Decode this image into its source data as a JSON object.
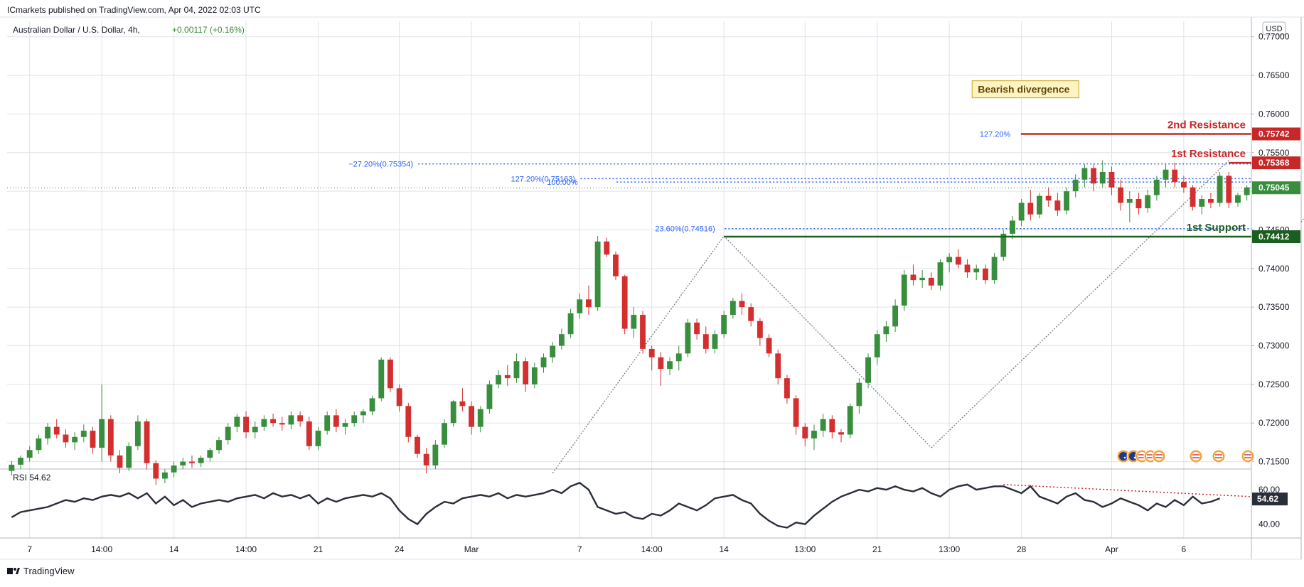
{
  "header": {
    "published": "ICmarkets published on TradingView.com, Apr 04, 2022 02:03 UTC",
    "symbol": "Australian Dollar / U.S. Dollar, 4h,",
    "change": "+0.00117 (+0.16%)",
    "currency": "USD"
  },
  "footer": {
    "brand": "TradingView",
    "brand_icon": "tradingview-logo-icon"
  },
  "colors": {
    "up": "#388e3c",
    "down": "#d32f2f",
    "resistance": "#c62828",
    "support": "#1b5e20",
    "fib": "#2962ff",
    "rsi": "#2a2e39",
    "grid": "#e0e3eb"
  },
  "chart_data": {
    "type": "candlestick",
    "y_axis": {
      "ticks": [
        "0.77000",
        "0.76500",
        "0.76000",
        "0.75500",
        "0.75000",
        "0.74500",
        "0.74000",
        "0.73500",
        "0.73000",
        "0.72500",
        "0.72000",
        "0.71500"
      ],
      "range": [
        0.7145,
        0.772
      ]
    },
    "x_axis": {
      "ticks": [
        {
          "label": "7",
          "i": 2
        },
        {
          "label": "14:00",
          "i": 10
        },
        {
          "label": "14",
          "i": 18
        },
        {
          "label": "14:00",
          "i": 26
        },
        {
          "label": "21",
          "i": 34
        },
        {
          "label": "24",
          "i": 43
        },
        {
          "label": "Mar",
          "i": 51
        },
        {
          "label": "7",
          "i": 63
        },
        {
          "label": "14:00",
          "i": 71
        },
        {
          "label": "14",
          "i": 79
        },
        {
          "label": "13:00",
          "i": 88
        },
        {
          "label": "21",
          "i": 96
        },
        {
          "label": "13:00",
          "i": 104
        },
        {
          "label": "28",
          "i": 112
        },
        {
          "label": "Apr",
          "i": 122
        },
        {
          "label": "6",
          "i": 130
        }
      ],
      "total_slots": 138
    },
    "candles": [
      [
        0.7138,
        0.7151,
        0.7132,
        0.7146
      ],
      [
        0.7146,
        0.7158,
        0.714,
        0.7155
      ],
      [
        0.7155,
        0.717,
        0.715,
        0.7165
      ],
      [
        0.7165,
        0.7185,
        0.716,
        0.718
      ],
      [
        0.718,
        0.72,
        0.7172,
        0.7195
      ],
      [
        0.7195,
        0.7205,
        0.718,
        0.7185
      ],
      [
        0.7185,
        0.7192,
        0.7168,
        0.7175
      ],
      [
        0.7175,
        0.7188,
        0.7165,
        0.7182
      ],
      [
        0.7182,
        0.7198,
        0.7175,
        0.719
      ],
      [
        0.719,
        0.7195,
        0.716,
        0.7168
      ],
      [
        0.7168,
        0.725,
        0.715,
        0.7205
      ],
      [
        0.7205,
        0.721,
        0.715,
        0.7158
      ],
      [
        0.7158,
        0.7165,
        0.7135,
        0.7142
      ],
      [
        0.7142,
        0.7175,
        0.7138,
        0.717
      ],
      [
        0.717,
        0.721,
        0.7165,
        0.7202
      ],
      [
        0.7202,
        0.7205,
        0.714,
        0.7148
      ],
      [
        0.7148,
        0.7152,
        0.712,
        0.7128
      ],
      [
        0.7128,
        0.714,
        0.7122,
        0.7136
      ],
      [
        0.7136,
        0.715,
        0.713,
        0.7145
      ],
      [
        0.7145,
        0.7155,
        0.714,
        0.715
      ],
      [
        0.715,
        0.7158,
        0.7142,
        0.7148
      ],
      [
        0.7148,
        0.7158,
        0.7143,
        0.7155
      ],
      [
        0.7155,
        0.7168,
        0.715,
        0.7165
      ],
      [
        0.7165,
        0.7182,
        0.716,
        0.7178
      ],
      [
        0.7178,
        0.72,
        0.7172,
        0.7195
      ],
      [
        0.7195,
        0.7212,
        0.7188,
        0.7208
      ],
      [
        0.7208,
        0.7215,
        0.718,
        0.7188
      ],
      [
        0.7188,
        0.7202,
        0.718,
        0.7195
      ],
      [
        0.7195,
        0.721,
        0.719,
        0.7205
      ],
      [
        0.7205,
        0.7212,
        0.7195,
        0.72
      ],
      [
        0.72,
        0.7208,
        0.719,
        0.7198
      ],
      [
        0.7198,
        0.7215,
        0.7192,
        0.721
      ],
      [
        0.721,
        0.7215,
        0.7195,
        0.7202
      ],
      [
        0.7202,
        0.7208,
        0.7165,
        0.717
      ],
      [
        0.717,
        0.7195,
        0.7165,
        0.719
      ],
      [
        0.719,
        0.7215,
        0.7185,
        0.721
      ],
      [
        0.721,
        0.7218,
        0.7188,
        0.7195
      ],
      [
        0.7195,
        0.7205,
        0.7185,
        0.72
      ],
      [
        0.72,
        0.7215,
        0.7195,
        0.721
      ],
      [
        0.721,
        0.7218,
        0.72,
        0.7215
      ],
      [
        0.7215,
        0.7235,
        0.721,
        0.7232
      ],
      [
        0.7232,
        0.7285,
        0.7228,
        0.7282
      ],
      [
        0.7282,
        0.7285,
        0.724,
        0.7245
      ],
      [
        0.7245,
        0.725,
        0.7215,
        0.7222
      ],
      [
        0.7222,
        0.7226,
        0.7175,
        0.7182
      ],
      [
        0.7182,
        0.7185,
        0.7155,
        0.716
      ],
      [
        0.716,
        0.7168,
        0.7135,
        0.7145
      ],
      [
        0.7145,
        0.7178,
        0.714,
        0.7172
      ],
      [
        0.7172,
        0.7205,
        0.7168,
        0.72
      ],
      [
        0.72,
        0.723,
        0.7195,
        0.7228
      ],
      [
        0.7228,
        0.7245,
        0.7215,
        0.7222
      ],
      [
        0.7222,
        0.7228,
        0.7185,
        0.7195
      ],
      [
        0.7195,
        0.7222,
        0.7188,
        0.7218
      ],
      [
        0.7218,
        0.7255,
        0.7212,
        0.725
      ],
      [
        0.725,
        0.7268,
        0.7245,
        0.7262
      ],
      [
        0.7262,
        0.7275,
        0.7248,
        0.7258
      ],
      [
        0.7258,
        0.729,
        0.7252,
        0.728
      ],
      [
        0.728,
        0.7285,
        0.724,
        0.725
      ],
      [
        0.725,
        0.7278,
        0.7245,
        0.7272
      ],
      [
        0.7272,
        0.729,
        0.7265,
        0.7285
      ],
      [
        0.7285,
        0.7305,
        0.7278,
        0.73
      ],
      [
        0.73,
        0.7322,
        0.7295,
        0.7315
      ],
      [
        0.7315,
        0.7348,
        0.731,
        0.7342
      ],
      [
        0.7342,
        0.7368,
        0.7335,
        0.736
      ],
      [
        0.736,
        0.7378,
        0.734,
        0.735
      ],
      [
        0.735,
        0.7442,
        0.7345,
        0.7435
      ],
      [
        0.7435,
        0.744,
        0.7415,
        0.7418
      ],
      [
        0.7418,
        0.7422,
        0.7385,
        0.739
      ],
      [
        0.739,
        0.7392,
        0.7315,
        0.7322
      ],
      [
        0.7322,
        0.735,
        0.731,
        0.734
      ],
      [
        0.734,
        0.7345,
        0.729,
        0.7296
      ],
      [
        0.7296,
        0.73,
        0.7268,
        0.7285
      ],
      [
        0.7285,
        0.7292,
        0.7248,
        0.727
      ],
      [
        0.727,
        0.7285,
        0.7262,
        0.728
      ],
      [
        0.728,
        0.73,
        0.7268,
        0.729
      ],
      [
        0.729,
        0.7335,
        0.7285,
        0.733
      ],
      [
        0.733,
        0.7335,
        0.7308,
        0.7315
      ],
      [
        0.7315,
        0.7325,
        0.729,
        0.7296
      ],
      [
        0.7296,
        0.732,
        0.729,
        0.7315
      ],
      [
        0.7315,
        0.7345,
        0.731,
        0.734
      ],
      [
        0.734,
        0.7362,
        0.7335,
        0.7358
      ],
      [
        0.7358,
        0.7368,
        0.734,
        0.735
      ],
      [
        0.735,
        0.7355,
        0.7325,
        0.7332
      ],
      [
        0.7332,
        0.7336,
        0.73,
        0.731
      ],
      [
        0.731,
        0.7315,
        0.7285,
        0.729
      ],
      [
        0.729,
        0.7295,
        0.725,
        0.7258
      ],
      [
        0.7258,
        0.7262,
        0.7225,
        0.7232
      ],
      [
        0.7232,
        0.7236,
        0.7185,
        0.7195
      ],
      [
        0.7195,
        0.72,
        0.717,
        0.718
      ],
      [
        0.718,
        0.7198,
        0.7165,
        0.719
      ],
      [
        0.719,
        0.7212,
        0.7182,
        0.7205
      ],
      [
        0.7205,
        0.721,
        0.718,
        0.7188
      ],
      [
        0.7188,
        0.7192,
        0.7175,
        0.7185
      ],
      [
        0.7185,
        0.7225,
        0.718,
        0.7222
      ],
      [
        0.7222,
        0.7258,
        0.7212,
        0.7252
      ],
      [
        0.7252,
        0.729,
        0.7245,
        0.7285
      ],
      [
        0.7285,
        0.732,
        0.7275,
        0.7315
      ],
      [
        0.7315,
        0.7332,
        0.7305,
        0.7325
      ],
      [
        0.7325,
        0.736,
        0.7318,
        0.7352
      ],
      [
        0.7352,
        0.7398,
        0.7345,
        0.7392
      ],
      [
        0.7392,
        0.7405,
        0.7378,
        0.7385
      ],
      [
        0.7385,
        0.7398,
        0.7375,
        0.7388
      ],
      [
        0.7388,
        0.7395,
        0.7372,
        0.7378
      ],
      [
        0.7378,
        0.7412,
        0.7372,
        0.7408
      ],
      [
        0.7408,
        0.742,
        0.7395,
        0.7415
      ],
      [
        0.7415,
        0.7425,
        0.74,
        0.7405
      ],
      [
        0.7405,
        0.7412,
        0.7388,
        0.7395
      ],
      [
        0.7395,
        0.7405,
        0.7385,
        0.74
      ],
      [
        0.74,
        0.7405,
        0.738,
        0.7385
      ],
      [
        0.7385,
        0.742,
        0.738,
        0.7415
      ],
      [
        0.7415,
        0.745,
        0.741,
        0.7445
      ],
      [
        0.7445,
        0.7468,
        0.7438,
        0.7462
      ],
      [
        0.7462,
        0.749,
        0.7455,
        0.7485
      ],
      [
        0.7485,
        0.7502,
        0.7462,
        0.747
      ],
      [
        0.747,
        0.7498,
        0.7465,
        0.7494
      ],
      [
        0.7494,
        0.7505,
        0.748,
        0.7488
      ],
      [
        0.7488,
        0.7498,
        0.7468,
        0.7475
      ],
      [
        0.7475,
        0.7505,
        0.747,
        0.75
      ],
      [
        0.75,
        0.7522,
        0.7492,
        0.7515
      ],
      [
        0.7515,
        0.7535,
        0.7505,
        0.753
      ],
      [
        0.753,
        0.7535,
        0.75,
        0.751
      ],
      [
        0.751,
        0.754,
        0.7505,
        0.7525
      ],
      [
        0.7525,
        0.7532,
        0.7495,
        0.7505
      ],
      [
        0.7505,
        0.7515,
        0.7475,
        0.7485
      ],
      [
        0.7485,
        0.75,
        0.746,
        0.749
      ],
      [
        0.749,
        0.7498,
        0.747,
        0.7478
      ],
      [
        0.7478,
        0.7502,
        0.7472,
        0.7495
      ],
      [
        0.7495,
        0.752,
        0.7488,
        0.7515
      ],
      [
        0.7515,
        0.7535,
        0.7505,
        0.7528
      ],
      [
        0.7528,
        0.7537,
        0.7505,
        0.7512
      ],
      [
        0.7512,
        0.752,
        0.7498,
        0.7505
      ],
      [
        0.7505,
        0.7508,
        0.7475,
        0.748
      ],
      [
        0.748,
        0.7495,
        0.747,
        0.749
      ],
      [
        0.749,
        0.7498,
        0.7478,
        0.7485
      ],
      [
        0.7485,
        0.7525,
        0.748,
        0.752
      ],
      [
        0.752,
        0.7525,
        0.7478,
        0.7485
      ],
      [
        0.7485,
        0.7498,
        0.748,
        0.7495
      ],
      [
        0.7495,
        0.7508,
        0.7488,
        0.7505
      ]
    ],
    "levels": [
      {
        "label": "2nd Resistance",
        "price": 0.75742,
        "tag": "0.75742",
        "type": "resistance"
      },
      {
        "label": "1st Resistance",
        "price": 0.75368,
        "tag": "0.75368",
        "type": "resistance"
      },
      {
        "label": "1st Support",
        "price": 0.74412,
        "tag": "0.74412",
        "type": "support"
      },
      {
        "label": "",
        "price": 0.75045,
        "tag": "0.75045",
        "type": "current"
      }
    ],
    "fib_labels": [
      {
        "text": "127.20%",
        "price": 0.75742,
        "i": 108
      },
      {
        "text": "−27.20%(0.75354)",
        "price": 0.75354,
        "i": 38
      },
      {
        "text": "127.20%(0.75163)",
        "price": 0.75163,
        "i": 56
      },
      {
        "text": "100.00%",
        "price": 0.7512,
        "i": 60
      },
      {
        "text": "23.60%(0.74516)",
        "price": 0.74516,
        "i": 72
      }
    ],
    "annotation": {
      "text": "Bearish divergence",
      "price": 0.7632,
      "i": 107
    },
    "rsi": {
      "label": "RSI",
      "value": "54.62",
      "ticks": [
        "60.00",
        "40.00"
      ],
      "range": [
        32,
        72
      ],
      "values": [
        44,
        47,
        48,
        49,
        50,
        52,
        54,
        53,
        55,
        54,
        56,
        57,
        56,
        58,
        55,
        58,
        52,
        56,
        51,
        54,
        50,
        52,
        53,
        54,
        53,
        55,
        56,
        57,
        55,
        58,
        56,
        57,
        55,
        57,
        52,
        55,
        53,
        55,
        56,
        57,
        56,
        58,
        55,
        48,
        43,
        40,
        46,
        50,
        53,
        52,
        55,
        56,
        57,
        56,
        58,
        55,
        57,
        56,
        57,
        58,
        60,
        58,
        62,
        64,
        60,
        50,
        48,
        46,
        47,
        44,
        43,
        46,
        45,
        48,
        52,
        50,
        48,
        51,
        55,
        56,
        57,
        54,
        52,
        46,
        42,
        39,
        38,
        41,
        40,
        45,
        49,
        53,
        56,
        58,
        60,
        59,
        61,
        60,
        62,
        60,
        59,
        61,
        58,
        56,
        60,
        62,
        63,
        60,
        61,
        62,
        62,
        60,
        58,
        62,
        56,
        54,
        52,
        56,
        58,
        54,
        53,
        50,
        52,
        55,
        53,
        51,
        48,
        52,
        50,
        54,
        51,
        56,
        52,
        53,
        55
      ],
      "divergence": {
        "from_i": 110,
        "from_v": 63,
        "to_i": 135,
        "to_v": 55
      }
    },
    "flag_icons": [
      "au-flag-icon",
      "au-flag-icon",
      "us-flag-icon",
      "us-flag-icon",
      "us-flag-icon",
      "us-flag-icon",
      "us-flag-icon",
      "us-flag-icon"
    ]
  }
}
